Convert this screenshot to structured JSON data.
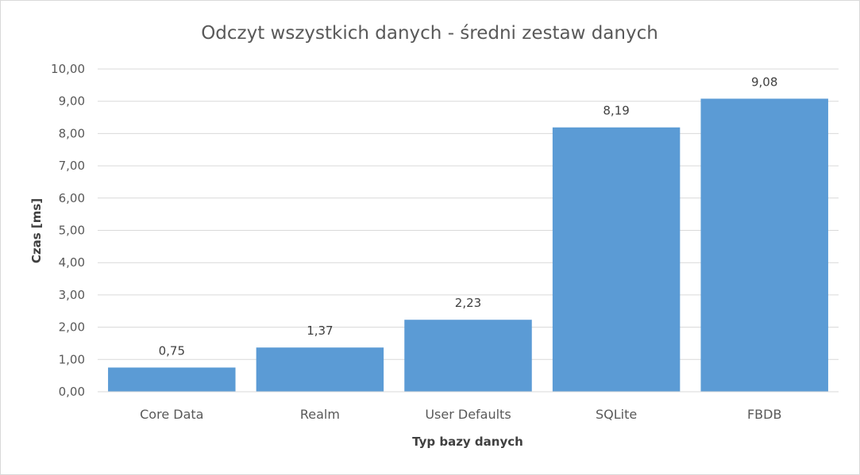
{
  "chart_data": {
    "type": "bar",
    "title": "Odczyt wszystkich danych - średni zestaw danych",
    "xlabel": "Typ bazy danych",
    "ylabel": "Czas [ms]",
    "categories": [
      "Core Data",
      "Realm",
      "User Defaults",
      "SQLite",
      "FBDB"
    ],
    "values": [
      0.75,
      1.37,
      2.23,
      8.19,
      9.08
    ],
    "value_labels": [
      "0,75",
      "1,37",
      "2,23",
      "8,19",
      "9,08"
    ],
    "ylim": [
      0,
      10
    ],
    "y_ticks": [
      "0,00",
      "1,00",
      "2,00",
      "3,00",
      "4,00",
      "5,00",
      "6,00",
      "7,00",
      "8,00",
      "9,00",
      "10,00"
    ],
    "grid": true,
    "legend": "none",
    "colors": {
      "bar": "#5b9bd5",
      "grid": "#d9d9d9",
      "text": "#595959"
    }
  }
}
